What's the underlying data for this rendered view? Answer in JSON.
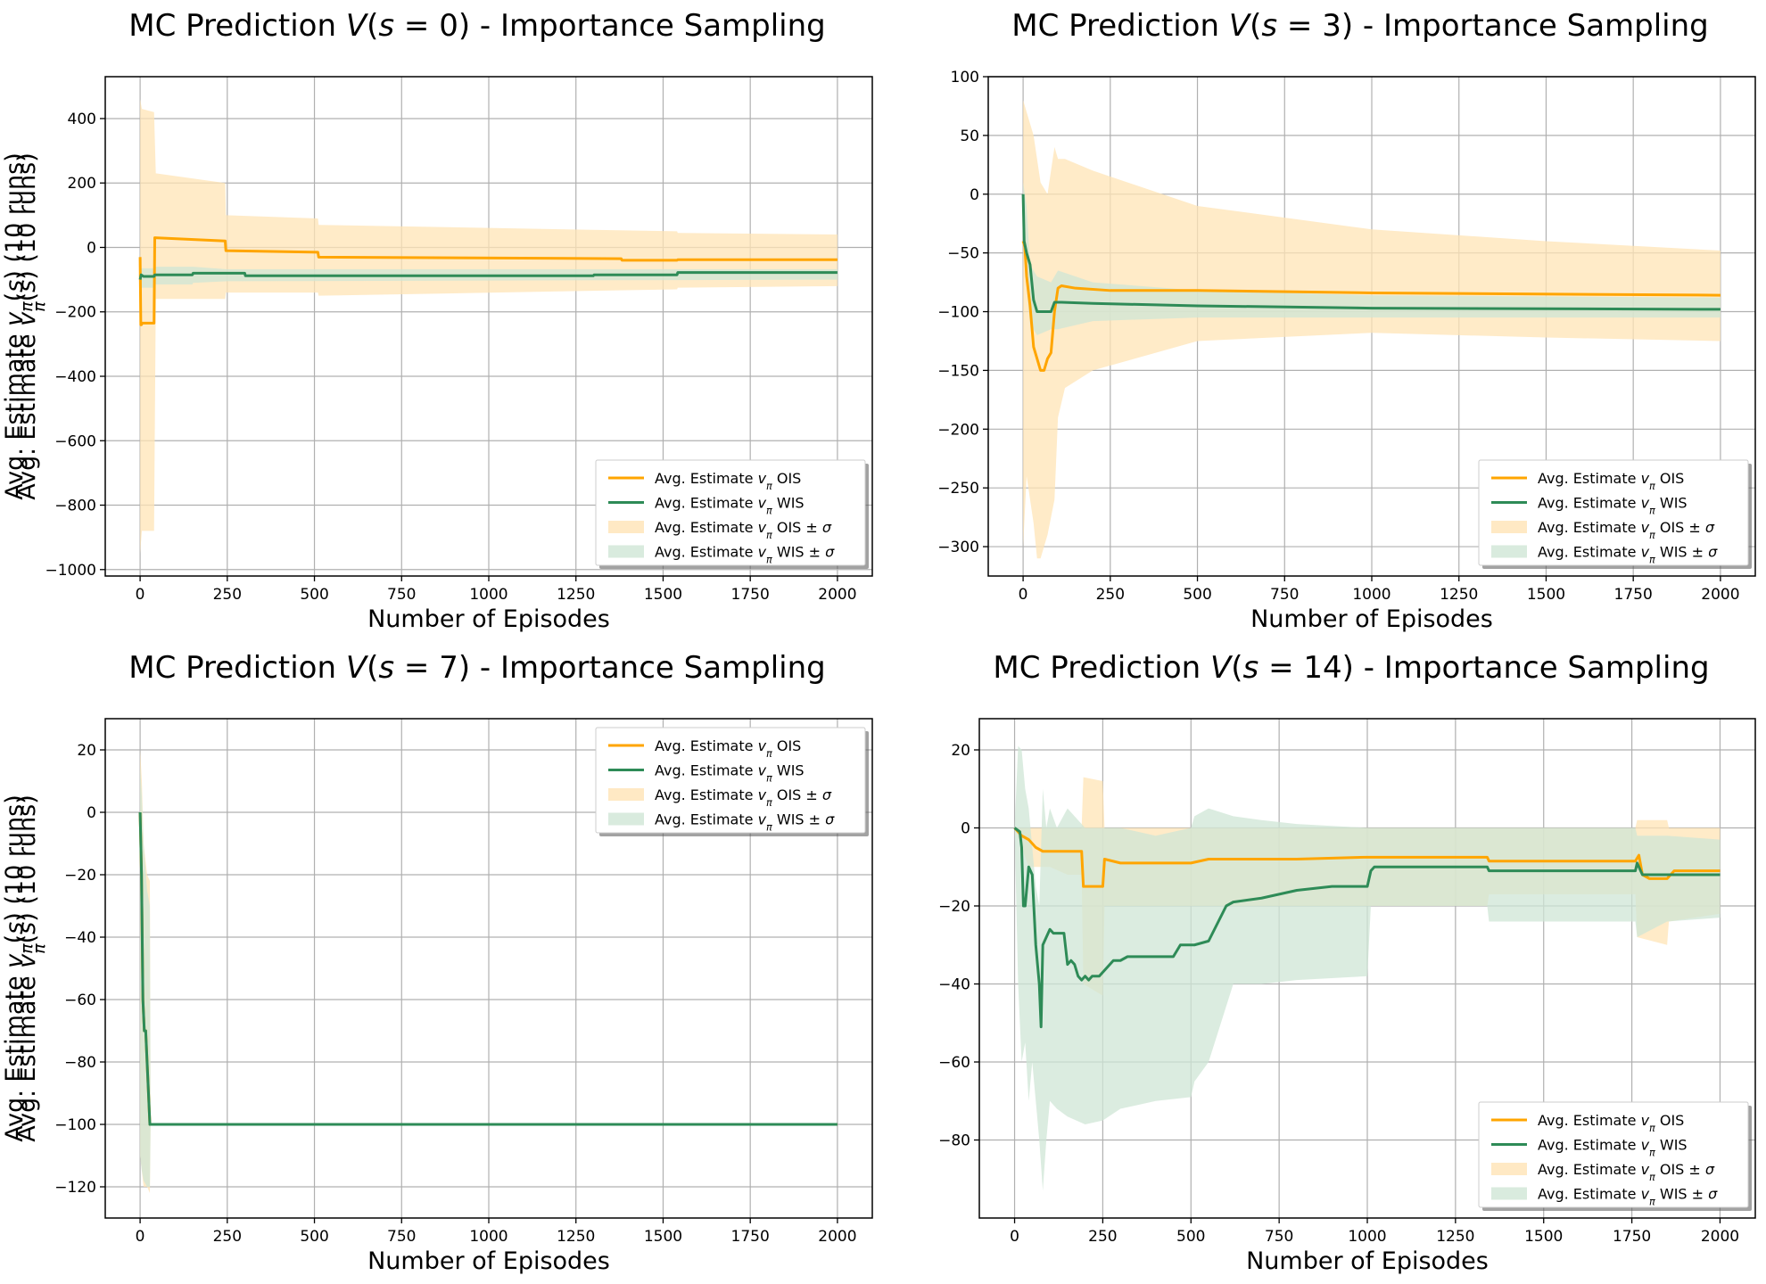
{
  "colors": {
    "ois_line": "#FFA500",
    "wis_line": "#2E8B57",
    "ois_band": "#FFE4B5",
    "wis_band": "#CFE6D6",
    "grid": "#b0b0b0"
  },
  "legend_labels": {
    "ois": "Avg. Estimate v_π OIS",
    "wis": "Avg. Estimate v_π WIS",
    "ois_band": "Avg. Estimate v_π OIS ± σ",
    "wis_band": "Avg. Estimate v_π WIS ± σ"
  },
  "chart_data": [
    {
      "type": "line",
      "title": "MC Prediction V(s = 0) - Importance Sampling",
      "xlabel": "Number of Episodes",
      "ylabel": "Avg. Estimate v_π(s) (10 runs)",
      "xlim": [
        -100,
        2100
      ],
      "ylim": [
        -1020,
        530
      ],
      "xticks": [
        0,
        250,
        500,
        750,
        1000,
        1250,
        1500,
        1750,
        2000
      ],
      "yticks": [
        -1000,
        -800,
        -600,
        -400,
        -200,
        0,
        200,
        400
      ],
      "grid": true,
      "legend_position": "lower right",
      "series": [
        {
          "name": "Avg. Estimate v_π OIS",
          "kind": "line",
          "color": "#FFA500",
          "x": [
            0,
            2,
            4,
            6,
            40,
            42,
            244,
            246,
            510,
            512,
            1380,
            1382,
            1540,
            1542,
            2000
          ],
          "y": [
            -30,
            -240,
            -240,
            -235,
            -235,
            30,
            20,
            -10,
            -15,
            -30,
            -35,
            -40,
            -40,
            -38,
            -38
          ]
        },
        {
          "name": "Avg. Estimate v_π WIS",
          "kind": "line",
          "color": "#2E8B57",
          "x": [
            0,
            3,
            10,
            40,
            42,
            150,
            152,
            300,
            302,
            1300,
            1302,
            1540,
            1542,
            2000
          ],
          "y": [
            -100,
            -85,
            -90,
            -90,
            -85,
            -85,
            -80,
            -80,
            -88,
            -88,
            -85,
            -85,
            -78,
            -78
          ]
        },
        {
          "name": "Avg. Estimate v_π OIS ± σ",
          "kind": "band",
          "color": "#FFE4B5",
          "x": [
            0,
            5,
            40,
            45,
            244,
            246,
            510,
            512,
            1540,
            1542,
            2000
          ],
          "upper": [
            460,
            430,
            420,
            230,
            200,
            100,
            90,
            70,
            50,
            45,
            40
          ],
          "lower": [
            -950,
            -880,
            -880,
            -160,
            -160,
            -140,
            -140,
            -150,
            -130,
            -125,
            -120
          ]
        },
        {
          "name": "Avg. Estimate v_π WIS ± σ",
          "kind": "band",
          "color": "#CFE6D6",
          "x": [
            0,
            40,
            42,
            150,
            152,
            250,
            2000
          ],
          "upper": [
            -65,
            -65,
            -60,
            -60,
            -60,
            -68,
            -68
          ],
          "lower": [
            -125,
            -125,
            -115,
            -115,
            -110,
            -105,
            -100
          ]
        }
      ]
    },
    {
      "type": "line",
      "title": "MC Prediction V(s = 3) - Importance Sampling",
      "xlabel": "Number of Episodes",
      "ylabel": "Avg. Estimate v_π(s) (10 runs)",
      "xlim": [
        -100,
        2100
      ],
      "ylim": [
        -325,
        100
      ],
      "xticks": [
        0,
        250,
        500,
        750,
        1000,
        1250,
        1500,
        1750,
        2000
      ],
      "yticks": [
        -300,
        -250,
        -200,
        -150,
        -100,
        -50,
        0,
        50,
        100
      ],
      "grid": true,
      "legend_position": "lower right",
      "series": [
        {
          "name": "Avg. Estimate v_π OIS",
          "kind": "line",
          "color": "#FFA500",
          "x": [
            0,
            5,
            10,
            20,
            30,
            40,
            50,
            60,
            70,
            80,
            90,
            100,
            110,
            150,
            250,
            500,
            1000,
            2000
          ],
          "y": [
            -40,
            -45,
            -70,
            -95,
            -130,
            -140,
            -150,
            -150,
            -140,
            -135,
            -100,
            -80,
            -78,
            -80,
            -82,
            -82,
            -84,
            -86
          ]
        },
        {
          "name": "Avg. Estimate v_π WIS",
          "kind": "line",
          "color": "#2E8B57",
          "x": [
            0,
            3,
            10,
            20,
            30,
            40,
            60,
            80,
            90,
            110,
            200,
            500,
            1000,
            2000
          ],
          "y": [
            0,
            -40,
            -50,
            -60,
            -90,
            -100,
            -100,
            -100,
            -92,
            -92,
            -93,
            -95,
            -97,
            -98
          ]
        },
        {
          "name": "Avg. Estimate v_π OIS ± σ",
          "kind": "band",
          "color": "#FFE4B5",
          "x": [
            0,
            10,
            30,
            40,
            50,
            70,
            90,
            100,
            120,
            200,
            500,
            1000,
            1500,
            2000
          ],
          "upper": [
            80,
            70,
            50,
            30,
            10,
            0,
            40,
            30,
            30,
            20,
            -10,
            -30,
            -40,
            -48
          ],
          "lower": [
            -300,
            -240,
            -280,
            -310,
            -310,
            -290,
            -260,
            -190,
            -165,
            -150,
            -125,
            -118,
            -122,
            -125
          ]
        },
        {
          "name": "Avg. Estimate v_π WIS ± σ",
          "kind": "band",
          "color": "#CFE6D6",
          "x": [
            0,
            10,
            20,
            40,
            80,
            100,
            200,
            500,
            1000,
            2000
          ],
          "upper": [
            10,
            -10,
            -60,
            -70,
            -75,
            -65,
            -75,
            -82,
            -86,
            -88
          ],
          "lower": [
            -10,
            -80,
            -110,
            -120,
            -115,
            -115,
            -108,
            -105,
            -105,
            -105
          ]
        }
      ]
    },
    {
      "type": "line",
      "title": "MC Prediction V(s = 7) - Importance Sampling",
      "xlabel": "Number of Episodes",
      "ylabel": "Avg. Estimate v_π(s) (10 runs)",
      "xlim": [
        -100,
        2100
      ],
      "ylim": [
        -130,
        30
      ],
      "xticks": [
        0,
        250,
        500,
        750,
        1000,
        1250,
        1500,
        1750,
        2000
      ],
      "yticks": [
        -120,
        -100,
        -80,
        -60,
        -40,
        -20,
        0,
        20
      ],
      "grid": true,
      "legend_position": "upper right",
      "series": [
        {
          "name": "Avg. Estimate v_π OIS",
          "kind": "line",
          "color": "#FFA500",
          "x": [
            0,
            4,
            8,
            12,
            16,
            20,
            24,
            28,
            2000
          ],
          "y": [
            0,
            -20,
            -60,
            -70,
            -70,
            -80,
            -90,
            -100,
            -100
          ]
        },
        {
          "name": "Avg. Estimate v_π WIS",
          "kind": "line",
          "color": "#2E8B57",
          "x": [
            0,
            4,
            8,
            12,
            16,
            20,
            24,
            28,
            2000
          ],
          "y": [
            0,
            -20,
            -60,
            -70,
            -70,
            -80,
            -90,
            -100,
            -100
          ]
        },
        {
          "name": "Avg. Estimate v_π OIS ± σ",
          "kind": "band",
          "color": "#FFE4B5",
          "x": [
            0,
            5,
            10,
            20,
            28,
            30,
            2000
          ],
          "upper": [
            20,
            10,
            -10,
            -20,
            -22,
            -100,
            -100
          ],
          "lower": [
            -110,
            -115,
            -120,
            -120,
            -122,
            -100,
            -100
          ]
        },
        {
          "name": "Avg. Estimate v_π WIS ± σ",
          "kind": "band",
          "color": "#CFE6D6",
          "x": [
            0,
            5,
            10,
            20,
            28,
            30,
            2000
          ],
          "upper": [
            15,
            5,
            -10,
            -25,
            -30,
            -100,
            -100
          ],
          "lower": [
            -110,
            -115,
            -118,
            -120,
            -120,
            -100,
            -100
          ]
        }
      ]
    },
    {
      "type": "line",
      "title": "MC Prediction V(s = 14) - Importance Sampling",
      "xlabel": "Number of Episodes",
      "ylabel": "Avg. Estimate v_π(s) (10 runs)",
      "xlim": [
        -100,
        2100
      ],
      "ylim": [
        -100,
        28
      ],
      "xticks": [
        0,
        250,
        500,
        750,
        1000,
        1250,
        1500,
        1750,
        2000
      ],
      "yticks": [
        -80,
        -60,
        -40,
        -20,
        0,
        20
      ],
      "grid": true,
      "legend_position": "lower right",
      "series": [
        {
          "name": "Avg. Estimate v_π OIS",
          "kind": "line",
          "color": "#FFA500",
          "x": [
            0,
            10,
            20,
            40,
            60,
            80,
            100,
            150,
            190,
            195,
            250,
            255,
            300,
            500,
            550,
            800,
            1000,
            1340,
            1345,
            1760,
            1770,
            1780,
            1800,
            1850,
            1870,
            2000
          ],
          "y": [
            0,
            -1,
            -2,
            -3,
            -5,
            -6,
            -6,
            -6,
            -6,
            -15,
            -15,
            -8,
            -9,
            -9,
            -8,
            -8,
            -7.5,
            -7.5,
            -8.5,
            -8.5,
            -7,
            -12,
            -13,
            -13,
            -11,
            -11
          ]
        },
        {
          "name": "Avg. Estimate v_π WIS",
          "kind": "line",
          "color": "#2E8B57",
          "x": [
            0,
            15,
            20,
            25,
            30,
            40,
            50,
            60,
            70,
            75,
            80,
            90,
            100,
            110,
            120,
            130,
            140,
            150,
            160,
            170,
            180,
            190,
            200,
            210,
            220,
            240,
            260,
            280,
            300,
            320,
            340,
            360,
            400,
            450,
            470,
            500,
            510,
            550,
            600,
            620,
            700,
            750,
            800,
            900,
            1000,
            1010,
            1020,
            1340,
            1345,
            1500,
            1760,
            1765,
            1770,
            1780,
            1800,
            2000
          ],
          "y": [
            0,
            -1,
            -5,
            -20,
            -20,
            -10,
            -12,
            -30,
            -40,
            -51,
            -30,
            -28,
            -26,
            -27,
            -27,
            -27,
            -27,
            -35,
            -34,
            -35,
            -38,
            -39,
            -38,
            -39,
            -38,
            -38,
            -36,
            -34,
            -34,
            -33,
            -33,
            -33,
            -33,
            -33,
            -30,
            -30,
            -30,
            -29,
            -20,
            -19,
            -18,
            -17,
            -16,
            -15,
            -15,
            -11,
            -10,
            -10,
            -11,
            -11,
            -11,
            -9,
            -10,
            -12,
            -12,
            -12
          ]
        },
        {
          "name": "Avg. Estimate v_π OIS ± σ",
          "kind": "band",
          "color": "#FFE4B5",
          "x": [
            0,
            20,
            40,
            60,
            100,
            150,
            190,
            195,
            250,
            255,
            500,
            510,
            800,
            1000,
            1340,
            1345,
            1760,
            1765,
            1850,
            1855,
            2000
          ],
          "upper": [
            0,
            0,
            0,
            0,
            0,
            0,
            0,
            13,
            12,
            0,
            0,
            0,
            0,
            0,
            0,
            0,
            0,
            2,
            2,
            0,
            0
          ],
          "lower": [
            0,
            -5,
            -10,
            -10,
            -10,
            -12,
            -12,
            -40,
            -43,
            -20,
            -20,
            -20,
            -20,
            -20,
            -20,
            -17,
            -17,
            -28,
            -30,
            -24,
            -22
          ]
        },
        {
          "name": "Avg. Estimate v_π WIS ± σ",
          "kind": "band",
          "color": "#CFE6D6",
          "x": [
            0,
            10,
            20,
            30,
            40,
            50,
            60,
            70,
            80,
            90,
            100,
            120,
            150,
            200,
            250,
            300,
            400,
            500,
            510,
            550,
            620,
            700,
            800,
            1000,
            1010,
            1340,
            1345,
            1760,
            1765,
            1850,
            2000
          ],
          "upper": [
            0,
            21,
            20,
            10,
            5,
            -5,
            -15,
            -20,
            10,
            0,
            5,
            0,
            5,
            0,
            0,
            0,
            -2,
            0,
            3,
            5,
            3,
            2,
            1,
            0,
            0,
            0,
            0,
            0,
            -2,
            -2,
            -3
          ],
          "lower": [
            0,
            -40,
            -60,
            -55,
            -70,
            -60,
            -70,
            -80,
            -93,
            -80,
            -70,
            -72,
            -74,
            -76,
            -75,
            -72,
            -70,
            -69,
            -65,
            -60,
            -40,
            -40,
            -39,
            -38,
            -20,
            -20,
            -24,
            -24,
            -28,
            -24,
            -23
          ]
        }
      ]
    }
  ]
}
